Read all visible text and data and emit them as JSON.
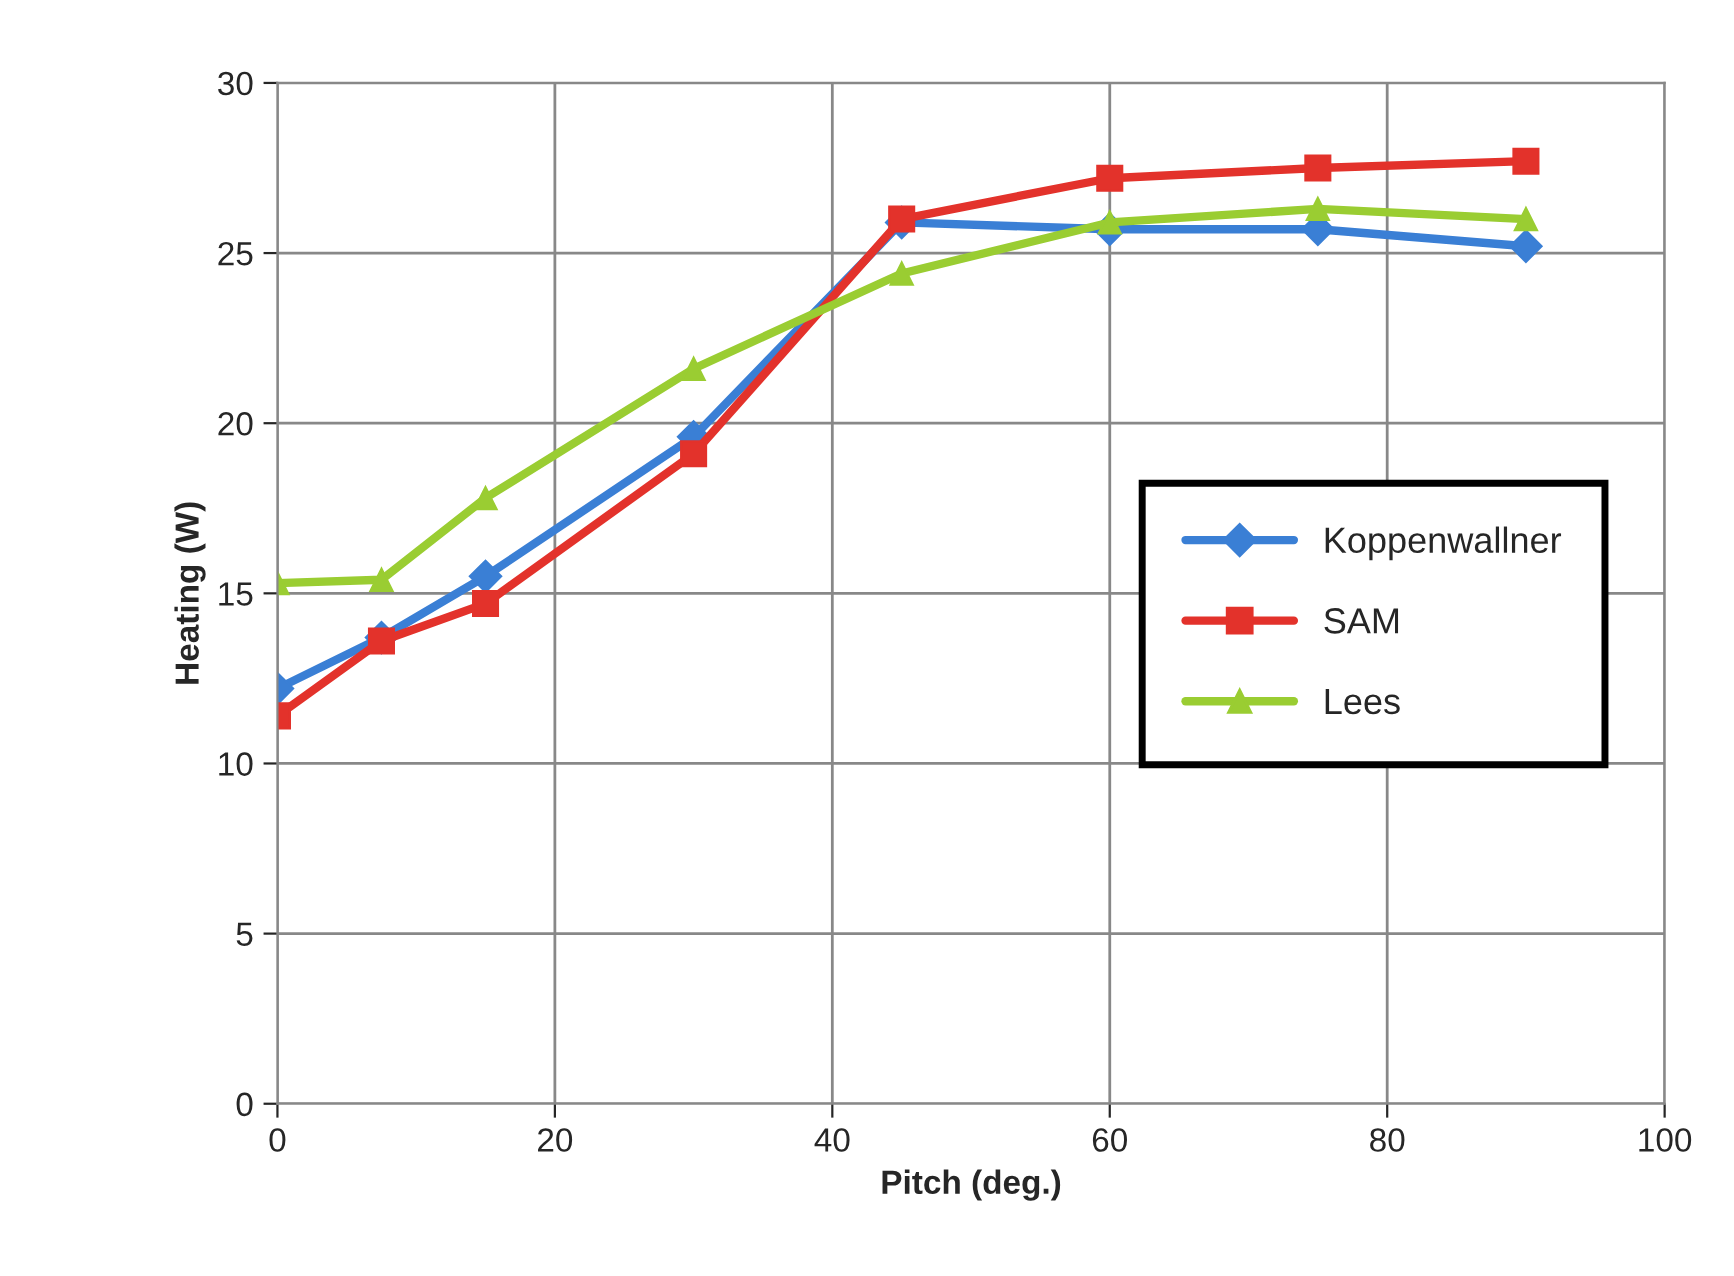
{
  "chart_data": {
    "type": "line",
    "xlabel": "Pitch (deg.)",
    "ylabel": "Heating (W)",
    "x": [
      0,
      7.5,
      15,
      30,
      45,
      60,
      75,
      90
    ],
    "series": [
      {
        "name": "Koppenwallner",
        "color": "#3a7fd5",
        "marker": "diamond",
        "values": [
          12.2,
          13.7,
          15.5,
          19.6,
          25.9,
          25.7,
          25.7,
          25.2
        ]
      },
      {
        "name": "SAM",
        "color": "#e3322b",
        "marker": "square",
        "values": [
          11.4,
          13.6,
          14.7,
          19.1,
          26.0,
          27.2,
          27.5,
          27.7
        ]
      },
      {
        "name": "Lees",
        "color": "#9acd32",
        "marker": "triangle",
        "values": [
          15.3,
          15.4,
          17.8,
          21.6,
          24.4,
          25.9,
          26.3,
          26.0
        ]
      }
    ],
    "xlim": [
      0,
      100
    ],
    "xticks": [
      0,
      20,
      40,
      60,
      80,
      100
    ],
    "ylim": [
      0,
      30
    ],
    "yticks": [
      0,
      5,
      10,
      15,
      20,
      25,
      30
    ],
    "grid": true,
    "legend": "right",
    "line_style": "solid"
  }
}
